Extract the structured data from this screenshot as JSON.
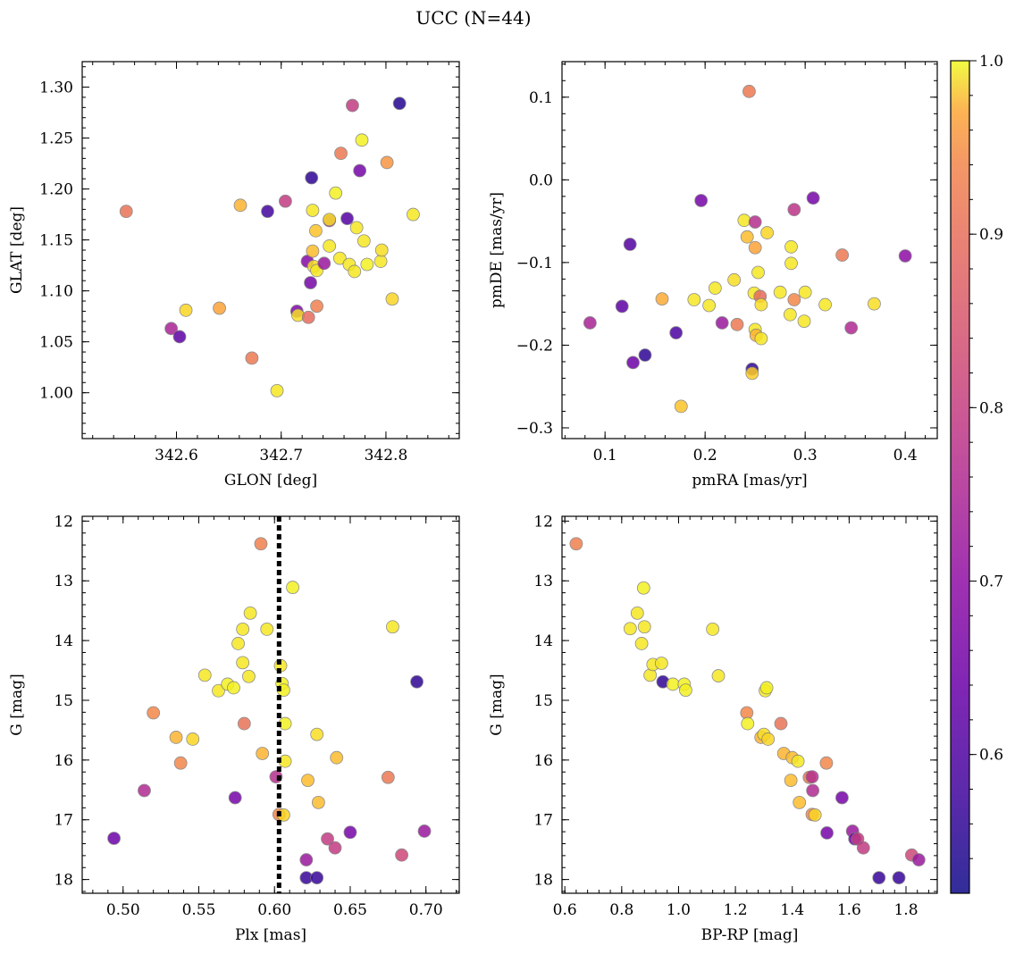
{
  "title": "UCC (N=44)",
  "colorbar": {
    "cmap": "plasma",
    "range": [
      0.52,
      1.0
    ],
    "ticks": [
      0.6,
      0.7,
      0.8,
      0.9,
      1.0
    ],
    "ticklabels": [
      "0.6",
      "0.7",
      "0.8",
      "0.9",
      "1.0"
    ]
  },
  "chart_data": [
    {
      "type": "scatter",
      "id": "pos",
      "xlabel": "GLON [deg]",
      "ylabel": "GLAT [deg]",
      "xlim": [
        342.51,
        342.87
      ],
      "ylim": [
        0.955,
        1.325
      ],
      "xticks": [
        342.6,
        342.7,
        342.8
      ],
      "xticklabels": [
        "342.6",
        "342.7",
        "342.8"
      ],
      "yticks": [
        1.0,
        1.05,
        1.1,
        1.15,
        1.2,
        1.25,
        1.3
      ],
      "yticklabels": [
        "1.00",
        "1.05",
        "1.10",
        "1.15",
        "1.20",
        "1.25",
        "1.30"
      ],
      "points": [
        {
          "x": 342.552,
          "y": 1.178,
          "c": 0.83
        },
        {
          "x": 342.595,
          "y": 1.063,
          "c": 0.7
        },
        {
          "x": 342.603,
          "y": 1.055,
          "c": 0.6
        },
        {
          "x": 342.609,
          "y": 1.081,
          "c": 0.96
        },
        {
          "x": 342.641,
          "y": 1.083,
          "c": 0.9
        },
        {
          "x": 342.661,
          "y": 1.184,
          "c": 0.92
        },
        {
          "x": 342.672,
          "y": 1.034,
          "c": 0.84
        },
        {
          "x": 342.687,
          "y": 1.178,
          "c": 0.57
        },
        {
          "x": 342.696,
          "y": 1.002,
          "c": 0.98
        },
        {
          "x": 342.704,
          "y": 1.188,
          "c": 0.74
        },
        {
          "x": 342.715,
          "y": 1.08,
          "c": 0.64
        },
        {
          "x": 342.716,
          "y": 1.076,
          "c": 0.97
        },
        {
          "x": 342.725,
          "y": 1.129,
          "c": 0.65
        },
        {
          "x": 342.726,
          "y": 1.074,
          "c": 0.82
        },
        {
          "x": 342.728,
          "y": 1.108,
          "c": 0.63
        },
        {
          "x": 342.729,
          "y": 1.211,
          "c": 0.55
        },
        {
          "x": 342.73,
          "y": 1.179,
          "c": 0.98
        },
        {
          "x": 342.73,
          "y": 1.139,
          "c": 0.93
        },
        {
          "x": 342.731,
          "y": 1.124,
          "c": 0.97
        },
        {
          "x": 342.733,
          "y": 1.159,
          "c": 0.94
        },
        {
          "x": 342.734,
          "y": 1.085,
          "c": 0.85
        },
        {
          "x": 342.734,
          "y": 1.12,
          "c": 0.98
        },
        {
          "x": 342.741,
          "y": 1.127,
          "c": 0.68
        },
        {
          "x": 342.746,
          "y": 1.169,
          "c": 0.7
        },
        {
          "x": 342.746,
          "y": 1.17,
          "c": 0.97
        },
        {
          "x": 342.746,
          "y": 1.144,
          "c": 0.98
        },
        {
          "x": 342.752,
          "y": 1.196,
          "c": 0.99
        },
        {
          "x": 342.756,
          "y": 1.132,
          "c": 0.98
        },
        {
          "x": 342.757,
          "y": 1.235,
          "c": 0.84
        },
        {
          "x": 342.763,
          "y": 1.171,
          "c": 0.59
        },
        {
          "x": 342.765,
          "y": 1.126,
          "c": 0.98
        },
        {
          "x": 342.768,
          "y": 1.282,
          "c": 0.74
        },
        {
          "x": 342.77,
          "y": 1.119,
          "c": 0.98
        },
        {
          "x": 342.772,
          "y": 1.162,
          "c": 0.98
        },
        {
          "x": 342.775,
          "y": 1.218,
          "c": 0.63
        },
        {
          "x": 342.777,
          "y": 1.248,
          "c": 0.99
        },
        {
          "x": 342.779,
          "y": 1.149,
          "c": 0.98
        },
        {
          "x": 342.782,
          "y": 1.126,
          "c": 0.99
        },
        {
          "x": 342.795,
          "y": 1.129,
          "c": 0.98
        },
        {
          "x": 342.796,
          "y": 1.14,
          "c": 0.97
        },
        {
          "x": 342.801,
          "y": 1.226,
          "c": 0.88
        },
        {
          "x": 342.806,
          "y": 1.092,
          "c": 0.96
        },
        {
          "x": 342.813,
          "y": 1.284,
          "c": 0.54
        },
        {
          "x": 342.826,
          "y": 1.175,
          "c": 0.98
        }
      ]
    },
    {
      "type": "scatter",
      "id": "pm",
      "xlabel": "pmRA [mas/yr]",
      "ylabel": "pmDE [mas/yr]",
      "xlim": [
        0.057,
        0.432
      ],
      "ylim": [
        -0.313,
        0.143
      ],
      "xticks": [
        0.1,
        0.2,
        0.3,
        0.4
      ],
      "xticklabels": [
        "0.1",
        "0.2",
        "0.3",
        "0.4"
      ],
      "yticks": [
        -0.3,
        -0.2,
        -0.1,
        0.0,
        0.1
      ],
      "yticklabels": [
        "−0.3",
        "−0.2",
        "−0.1",
        "0.0",
        "0.1"
      ],
      "points": [
        {
          "x": 0.085,
          "y": -0.173,
          "c": 0.7
        },
        {
          "x": 0.117,
          "y": -0.153,
          "c": 0.6
        },
        {
          "x": 0.125,
          "y": -0.078,
          "c": 0.59
        },
        {
          "x": 0.128,
          "y": -0.221,
          "c": 0.62
        },
        {
          "x": 0.14,
          "y": -0.212,
          "c": 0.55
        },
        {
          "x": 0.157,
          "y": -0.144,
          "c": 0.91
        },
        {
          "x": 0.171,
          "y": -0.185,
          "c": 0.58
        },
        {
          "x": 0.176,
          "y": -0.274,
          "c": 0.94
        },
        {
          "x": 0.189,
          "y": -0.145,
          "c": 0.98
        },
        {
          "x": 0.196,
          "y": -0.025,
          "c": 0.63
        },
        {
          "x": 0.204,
          "y": -0.152,
          "c": 0.98
        },
        {
          "x": 0.21,
          "y": -0.131,
          "c": 0.98
        },
        {
          "x": 0.217,
          "y": -0.173,
          "c": 0.68
        },
        {
          "x": 0.229,
          "y": -0.121,
          "c": 0.97
        },
        {
          "x": 0.232,
          "y": -0.175,
          "c": 0.84
        },
        {
          "x": 0.239,
          "y": -0.049,
          "c": 0.98
        },
        {
          "x": 0.242,
          "y": -0.069,
          "c": 0.93
        },
        {
          "x": 0.244,
          "y": 0.107,
          "c": 0.84
        },
        {
          "x": 0.247,
          "y": -0.229,
          "c": 0.55
        },
        {
          "x": 0.247,
          "y": -0.234,
          "c": 0.95
        },
        {
          "x": 0.249,
          "y": -0.137,
          "c": 0.98
        },
        {
          "x": 0.25,
          "y": -0.181,
          "c": 0.98
        },
        {
          "x": 0.25,
          "y": -0.051,
          "c": 0.72
        },
        {
          "x": 0.25,
          "y": -0.082,
          "c": 0.9
        },
        {
          "x": 0.251,
          "y": -0.188,
          "c": 0.92
        },
        {
          "x": 0.253,
          "y": -0.112,
          "c": 0.98
        },
        {
          "x": 0.255,
          "y": -0.141,
          "c": 0.82
        },
        {
          "x": 0.256,
          "y": -0.151,
          "c": 0.97
        },
        {
          "x": 0.256,
          "y": -0.192,
          "c": 0.98
        },
        {
          "x": 0.262,
          "y": -0.064,
          "c": 0.96
        },
        {
          "x": 0.275,
          "y": -0.136,
          "c": 0.98
        },
        {
          "x": 0.285,
          "y": -0.163,
          "c": 0.98
        },
        {
          "x": 0.286,
          "y": -0.081,
          "c": 0.98
        },
        {
          "x": 0.286,
          "y": -0.101,
          "c": 0.98
        },
        {
          "x": 0.289,
          "y": -0.036,
          "c": 0.73
        },
        {
          "x": 0.289,
          "y": -0.145,
          "c": 0.86
        },
        {
          "x": 0.299,
          "y": -0.171,
          "c": 0.98
        },
        {
          "x": 0.3,
          "y": -0.136,
          "c": 0.98
        },
        {
          "x": 0.308,
          "y": -0.022,
          "c": 0.63
        },
        {
          "x": 0.32,
          "y": -0.151,
          "c": 0.98
        },
        {
          "x": 0.337,
          "y": -0.091,
          "c": 0.84
        },
        {
          "x": 0.346,
          "y": -0.179,
          "c": 0.71
        },
        {
          "x": 0.369,
          "y": -0.15,
          "c": 0.97
        },
        {
          "x": 0.4,
          "y": -0.092,
          "c": 0.66
        }
      ]
    },
    {
      "type": "scatter",
      "id": "plx",
      "xlabel": "Plx [mas]",
      "ylabel": "G [mag]",
      "xlim": [
        0.473,
        0.722
      ],
      "ylim": [
        18.23,
        11.92
      ],
      "y_inverted": true,
      "vline": 0.603,
      "xticks": [
        0.5,
        0.55,
        0.6,
        0.65,
        0.7
      ],
      "xticklabels": [
        "0.50",
        "0.55",
        "0.60",
        "0.65",
        "0.70"
      ],
      "yticks": [
        12,
        13,
        14,
        15,
        16,
        17,
        18
      ],
      "yticklabels": [
        "12",
        "13",
        "14",
        "15",
        "16",
        "17",
        "18"
      ],
      "points": [
        {
          "x": 0.494,
          "y": 17.31,
          "c": 0.62
        },
        {
          "x": 0.514,
          "y": 16.51,
          "c": 0.71
        },
        {
          "x": 0.52,
          "y": 15.21,
          "c": 0.86
        },
        {
          "x": 0.535,
          "y": 15.62,
          "c": 0.92
        },
        {
          "x": 0.538,
          "y": 16.05,
          "c": 0.86
        },
        {
          "x": 0.546,
          "y": 15.65,
          "c": 0.96
        },
        {
          "x": 0.554,
          "y": 14.58,
          "c": 0.98
        },
        {
          "x": 0.563,
          "y": 14.84,
          "c": 0.98
        },
        {
          "x": 0.569,
          "y": 14.73,
          "c": 0.99
        },
        {
          "x": 0.573,
          "y": 14.79,
          "c": 0.99
        },
        {
          "x": 0.574,
          "y": 16.63,
          "c": 0.63
        },
        {
          "x": 0.576,
          "y": 14.05,
          "c": 0.98
        },
        {
          "x": 0.579,
          "y": 14.37,
          "c": 0.98
        },
        {
          "x": 0.579,
          "y": 13.81,
          "c": 0.98
        },
        {
          "x": 0.58,
          "y": 15.39,
          "c": 0.83
        },
        {
          "x": 0.583,
          "y": 14.6,
          "c": 0.98
        },
        {
          "x": 0.584,
          "y": 13.54,
          "c": 0.98
        },
        {
          "x": 0.591,
          "y": 12.38,
          "c": 0.85
        },
        {
          "x": 0.592,
          "y": 15.89,
          "c": 0.92
        },
        {
          "x": 0.595,
          "y": 13.81,
          "c": 0.98
        },
        {
          "x": 0.601,
          "y": 16.28,
          "c": 0.72
        },
        {
          "x": 0.603,
          "y": 16.91,
          "c": 0.86
        },
        {
          "x": 0.604,
          "y": 14.42,
          "c": 0.98
        },
        {
          "x": 0.605,
          "y": 14.72,
          "c": 0.99
        },
        {
          "x": 0.606,
          "y": 14.83,
          "c": 0.99
        },
        {
          "x": 0.606,
          "y": 16.92,
          "c": 0.96
        },
        {
          "x": 0.607,
          "y": 15.39,
          "c": 0.99
        },
        {
          "x": 0.607,
          "y": 16.02,
          "c": 0.98
        },
        {
          "x": 0.612,
          "y": 13.11,
          "c": 0.99
        },
        {
          "x": 0.621,
          "y": 17.67,
          "c": 0.68
        },
        {
          "x": 0.621,
          "y": 17.97,
          "c": 0.56
        },
        {
          "x": 0.622,
          "y": 16.34,
          "c": 0.93
        },
        {
          "x": 0.628,
          "y": 17.97,
          "c": 0.56
        },
        {
          "x": 0.628,
          "y": 15.57,
          "c": 0.97
        },
        {
          "x": 0.629,
          "y": 16.71,
          "c": 0.93
        },
        {
          "x": 0.635,
          "y": 17.32,
          "c": 0.74
        },
        {
          "x": 0.64,
          "y": 17.47,
          "c": 0.74
        },
        {
          "x": 0.641,
          "y": 15.96,
          "c": 0.93
        },
        {
          "x": 0.65,
          "y": 17.21,
          "c": 0.63
        },
        {
          "x": 0.675,
          "y": 16.29,
          "c": 0.84
        },
        {
          "x": 0.678,
          "y": 13.77,
          "c": 0.98
        },
        {
          "x": 0.684,
          "y": 17.59,
          "c": 0.76
        },
        {
          "x": 0.694,
          "y": 14.69,
          "c": 0.55
        },
        {
          "x": 0.699,
          "y": 17.19,
          "c": 0.68
        }
      ]
    },
    {
      "type": "scatter",
      "id": "cmd",
      "xlabel": "BP-RP [mag]",
      "ylabel": "G [mag]",
      "xlim": [
        0.59,
        1.91
      ],
      "ylim": [
        18.23,
        11.92
      ],
      "y_inverted": true,
      "xticks": [
        0.6,
        0.8,
        1.0,
        1.2,
        1.4,
        1.6,
        1.8
      ],
      "xticklabels": [
        "0.6",
        "0.8",
        "1.0",
        "1.2",
        "1.4",
        "1.6",
        "1.8"
      ],
      "yticks": [
        12,
        13,
        14,
        15,
        16,
        17,
        18
      ],
      "yticklabels": [
        "12",
        "13",
        "14",
        "15",
        "16",
        "17",
        "18"
      ],
      "points": [
        {
          "x": 0.64,
          "y": 12.38,
          "c": 0.85
        },
        {
          "x": 0.83,
          "y": 13.8,
          "c": 0.98
        },
        {
          "x": 0.855,
          "y": 13.54,
          "c": 0.98
        },
        {
          "x": 0.87,
          "y": 14.05,
          "c": 0.98
        },
        {
          "x": 0.877,
          "y": 13.12,
          "c": 0.99
        },
        {
          "x": 0.88,
          "y": 13.77,
          "c": 0.98
        },
        {
          "x": 0.9,
          "y": 14.58,
          "c": 0.98
        },
        {
          "x": 0.91,
          "y": 14.4,
          "c": 0.98
        },
        {
          "x": 0.94,
          "y": 14.38,
          "c": 0.98
        },
        {
          "x": 0.945,
          "y": 14.69,
          "c": 0.55
        },
        {
          "x": 0.98,
          "y": 14.73,
          "c": 0.99
        },
        {
          "x": 1.02,
          "y": 14.73,
          "c": 0.99
        },
        {
          "x": 1.025,
          "y": 14.83,
          "c": 0.99
        },
        {
          "x": 1.12,
          "y": 13.81,
          "c": 0.98
        },
        {
          "x": 1.14,
          "y": 14.59,
          "c": 0.98
        },
        {
          "x": 1.24,
          "y": 15.21,
          "c": 0.86
        },
        {
          "x": 1.243,
          "y": 15.39,
          "c": 0.99
        },
        {
          "x": 1.29,
          "y": 15.62,
          "c": 0.92
        },
        {
          "x": 1.3,
          "y": 15.57,
          "c": 0.97
        },
        {
          "x": 1.305,
          "y": 14.84,
          "c": 0.98
        },
        {
          "x": 1.31,
          "y": 14.79,
          "c": 0.99
        },
        {
          "x": 1.315,
          "y": 15.65,
          "c": 0.96
        },
        {
          "x": 1.36,
          "y": 15.39,
          "c": 0.83
        },
        {
          "x": 1.37,
          "y": 15.89,
          "c": 0.92
        },
        {
          "x": 1.395,
          "y": 16.34,
          "c": 0.93
        },
        {
          "x": 1.4,
          "y": 15.96,
          "c": 0.93
        },
        {
          "x": 1.42,
          "y": 16.02,
          "c": 0.98
        },
        {
          "x": 1.425,
          "y": 16.71,
          "c": 0.93
        },
        {
          "x": 1.46,
          "y": 16.29,
          "c": 0.84
        },
        {
          "x": 1.47,
          "y": 16.28,
          "c": 0.72
        },
        {
          "x": 1.47,
          "y": 16.91,
          "c": 0.86
        },
        {
          "x": 1.472,
          "y": 16.51,
          "c": 0.71
        },
        {
          "x": 1.48,
          "y": 16.92,
          "c": 0.96
        },
        {
          "x": 1.52,
          "y": 16.05,
          "c": 0.86
        },
        {
          "x": 1.522,
          "y": 17.22,
          "c": 0.63
        },
        {
          "x": 1.575,
          "y": 16.63,
          "c": 0.63
        },
        {
          "x": 1.612,
          "y": 17.19,
          "c": 0.68
        },
        {
          "x": 1.62,
          "y": 17.32,
          "c": 0.62
        },
        {
          "x": 1.63,
          "y": 17.32,
          "c": 0.74
        },
        {
          "x": 1.65,
          "y": 17.47,
          "c": 0.74
        },
        {
          "x": 1.705,
          "y": 17.97,
          "c": 0.56
        },
        {
          "x": 1.775,
          "y": 17.97,
          "c": 0.56
        },
        {
          "x": 1.82,
          "y": 17.59,
          "c": 0.76
        },
        {
          "x": 1.845,
          "y": 17.67,
          "c": 0.68
        }
      ]
    }
  ]
}
